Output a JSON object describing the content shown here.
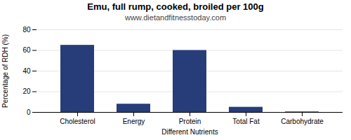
{
  "chart_data": {
    "type": "bar",
    "title": "Emu, full rump, cooked, broiled per 100g",
    "subtitle": "www.dietandfitnesstoday.com",
    "xlabel": "Different Nutrients",
    "ylabel": "Percentage of RDH (%)",
    "categories": [
      "Cholesterol",
      "Energy",
      "Protein",
      "Total Fat",
      "Carbohydrate"
    ],
    "values": [
      65,
      8,
      60,
      5,
      0.5
    ],
    "color": "#263d7a",
    "ylim": [
      0,
      80
    ],
    "yticks": [
      0,
      20,
      40,
      60,
      80
    ],
    "grid": true
  }
}
